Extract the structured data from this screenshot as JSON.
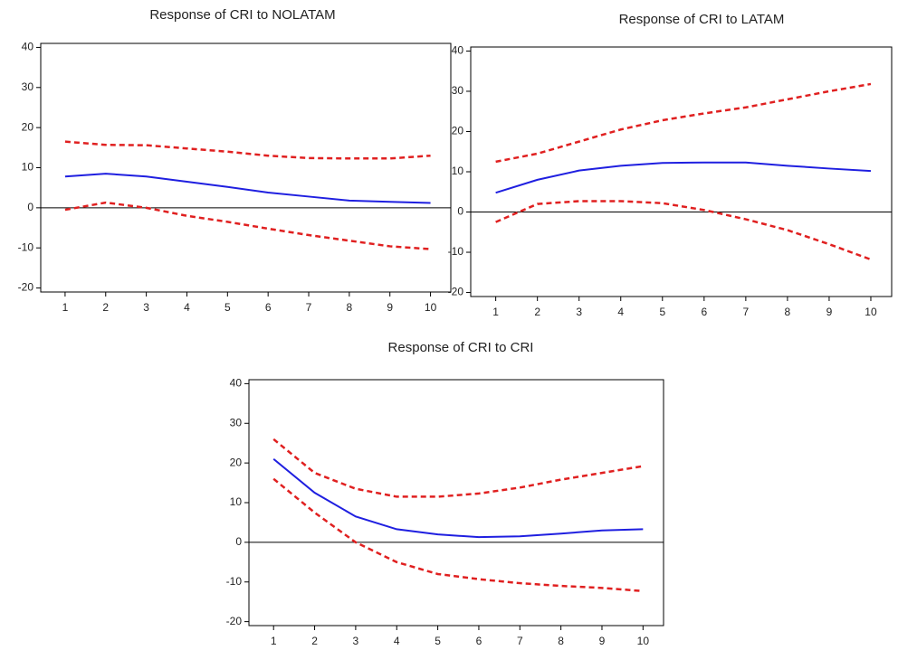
{
  "chart_data": [
    {
      "type": "line",
      "title": "Response of CRI to NOLATAM",
      "x": [
        1,
        2,
        3,
        4,
        5,
        6,
        7,
        8,
        9,
        10
      ],
      "xlim": [
        0.4,
        10.5
      ],
      "xticks": [
        1,
        2,
        3,
        4,
        5,
        6,
        7,
        8,
        9,
        10
      ],
      "ylim": [
        -21,
        41
      ],
      "yticks": [
        -20,
        -10,
        0,
        10,
        20,
        30,
        40
      ],
      "series": [
        {
          "color": "#1f1fe0",
          "dashed": false,
          "values": [
            7.8,
            8.5,
            7.8,
            6.5,
            5.2,
            3.8,
            2.8,
            1.8,
            1.5,
            1.2
          ]
        },
        {
          "color": "#e02020",
          "dashed": true,
          "values": [
            16.5,
            15.7,
            15.6,
            14.8,
            14.0,
            13.0,
            12.4,
            12.3,
            12.3,
            13.0
          ]
        },
        {
          "color": "#e02020",
          "dashed": true,
          "values": [
            -0.5,
            1.3,
            0.0,
            -2.0,
            -3.5,
            -5.2,
            -6.8,
            -8.2,
            -9.6,
            -10.3
          ]
        }
      ]
    },
    {
      "type": "line",
      "title": "Response of CRI to LATAM",
      "x": [
        1,
        2,
        3,
        4,
        5,
        6,
        7,
        8,
        9,
        10
      ],
      "xlim": [
        0.4,
        10.5
      ],
      "xticks": [
        1,
        2,
        3,
        4,
        5,
        6,
        7,
        8,
        9,
        10
      ],
      "ylim": [
        -21,
        41
      ],
      "yticks": [
        -20,
        -10,
        0,
        10,
        20,
        30,
        40
      ],
      "series": [
        {
          "color": "#1f1fe0",
          "dashed": false,
          "values": [
            4.8,
            8.0,
            10.3,
            11.5,
            12.2,
            12.3,
            12.3,
            11.5,
            10.8,
            10.2
          ]
        },
        {
          "color": "#e02020",
          "dashed": true,
          "values": [
            12.5,
            14.5,
            17.5,
            20.5,
            22.8,
            24.5,
            26.0,
            28.0,
            30.0,
            31.8
          ]
        },
        {
          "color": "#e02020",
          "dashed": true,
          "values": [
            -2.5,
            2.0,
            2.7,
            2.7,
            2.2,
            0.5,
            -1.8,
            -4.5,
            -8.0,
            -11.8
          ]
        }
      ]
    },
    {
      "type": "line",
      "title": "Response of CRI to CRI",
      "x": [
        1,
        2,
        3,
        4,
        5,
        6,
        7,
        8,
        9,
        10
      ],
      "xlim": [
        0.4,
        10.5
      ],
      "xticks": [
        1,
        2,
        3,
        4,
        5,
        6,
        7,
        8,
        9,
        10
      ],
      "ylim": [
        -21,
        41
      ],
      "yticks": [
        -20,
        -10,
        0,
        10,
        20,
        30,
        40
      ],
      "series": [
        {
          "color": "#1f1fe0",
          "dashed": false,
          "values": [
            21.0,
            12.5,
            6.5,
            3.3,
            2.0,
            1.3,
            1.5,
            2.2,
            3.0,
            3.3
          ]
        },
        {
          "color": "#e02020",
          "dashed": true,
          "values": [
            26.0,
            17.5,
            13.5,
            11.5,
            11.5,
            12.3,
            13.8,
            15.8,
            17.5,
            19.2
          ]
        },
        {
          "color": "#e02020",
          "dashed": true,
          "values": [
            16.0,
            7.5,
            0.0,
            -5.0,
            -8.0,
            -9.3,
            -10.3,
            -11.0,
            -11.5,
            -12.3
          ]
        }
      ]
    }
  ]
}
